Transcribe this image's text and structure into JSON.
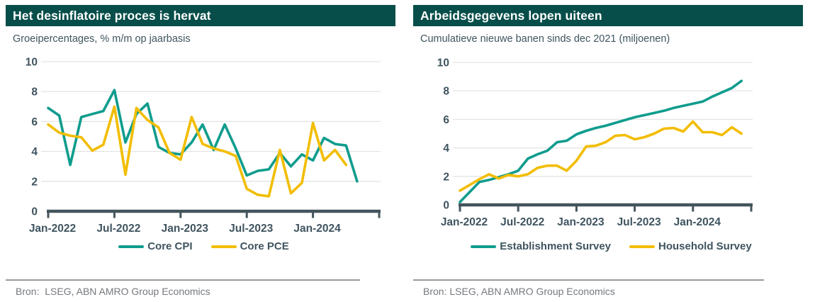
{
  "colors": {
    "header_bg": "#074E4A",
    "teal": "#0F9C8D",
    "yellow": "#F2BD00",
    "slate_text": "#3F545F",
    "axis": "#44545C",
    "grid": "#E3E4E5",
    "footer_rule": "#97999B",
    "footer_text": "#76797E"
  },
  "left_panel": {
    "title": "Het desinflatoire proces is hervat",
    "subtitle": "Groeipercentages, % m/m op jaarbasis",
    "source": "Bron:  LSEG, ABN AMRO Group Economics"
  },
  "right_panel": {
    "title": "Arbeidsgegevens lopen uiteen",
    "subtitle": "Cumulatieve nieuwe banen sinds dec 2021 (miljoenen)",
    "source": "Bron: LSEG, ABN AMRO Group Economics"
  },
  "chart_data": [
    {
      "type": "line",
      "title": "Het desinflatoire proces is hervat",
      "subtitle": "Groeipercentages, % m/m op jaarbasis",
      "ylim": [
        0,
        10
      ],
      "y_ticks": [
        0,
        2,
        4,
        6,
        8,
        10
      ],
      "grid": true,
      "legend_position": "bottom",
      "x_tick_labels": [
        "Jan-2022",
        "Jul-2022",
        "Jan-2023",
        "Jul-2023",
        "Jan-2024"
      ],
      "categories": [
        "Jan-2022",
        "Feb-2022",
        "Mar-2022",
        "Apr-2022",
        "May-2022",
        "Jun-2022",
        "Jul-2022",
        "Aug-2022",
        "Sep-2022",
        "Oct-2022",
        "Nov-2022",
        "Dec-2022",
        "Jan-2023",
        "Feb-2023",
        "Mar-2023",
        "Apr-2023",
        "May-2023",
        "Jun-2023",
        "Jul-2023",
        "Aug-2023",
        "Sep-2023",
        "Oct-2023",
        "Nov-2023",
        "Dec-2023",
        "Jan-2024",
        "Feb-2024",
        "Mar-2024",
        "Apr-2024",
        "May-2024"
      ],
      "series": [
        {
          "name": "Core CPI",
          "color_key": "teal",
          "values": [
            6.9,
            6.4,
            3.1,
            6.3,
            6.5,
            6.7,
            8.1,
            4.6,
            6.5,
            7.2,
            4.3,
            3.9,
            3.8,
            4.6,
            5.8,
            4.1,
            5.8,
            4.2,
            2.4,
            2.7,
            2.8,
            3.9,
            3.0,
            3.8,
            3.4,
            4.9,
            4.5,
            4.4,
            2.0
          ]
        },
        {
          "name": "Core PCE",
          "color_key": "yellow",
          "values": [
            5.8,
            5.25,
            5.05,
            4.95,
            4.05,
            4.45,
            7.0,
            2.45,
            6.9,
            6.1,
            5.6,
            3.9,
            3.45,
            6.3,
            4.5,
            4.2,
            4.0,
            3.7,
            1.5,
            1.1,
            1.0,
            4.1,
            1.2,
            1.9,
            5.9,
            3.4,
            4.1,
            3.1,
            null
          ]
        }
      ]
    },
    {
      "type": "line",
      "title": "Arbeidsgegevens lopen uiteen",
      "subtitle": "Cumulatieve nieuwe banen sinds dec 2021 (miljoenen)",
      "ylim": [
        0,
        10
      ],
      "y_ticks": [
        0,
        2,
        4,
        6,
        8,
        10
      ],
      "grid": true,
      "legend_position": "bottom",
      "x_tick_labels": [
        "Jan-2022",
        "Jul-2022",
        "Jan-2023",
        "Jul-2023",
        "Jan-2024"
      ],
      "categories": [
        "Jan-2022",
        "Feb-2022",
        "Mar-2022",
        "Apr-2022",
        "May-2022",
        "Jun-2022",
        "Jul-2022",
        "Aug-2022",
        "Sep-2022",
        "Oct-2022",
        "Nov-2022",
        "Dec-2022",
        "Jan-2023",
        "Feb-2023",
        "Mar-2023",
        "Apr-2023",
        "May-2023",
        "Jun-2023",
        "Jul-2023",
        "Aug-2023",
        "Sep-2023",
        "Oct-2023",
        "Nov-2023",
        "Dec-2023",
        "Jan-2024",
        "Feb-2024",
        "Mar-2024",
        "Apr-2024",
        "May-2024",
        "Jun-2024"
      ],
      "series": [
        {
          "name": "Establishment Survey",
          "color_key": "teal",
          "values": [
            0.2,
            0.9,
            1.6,
            1.75,
            1.95,
            2.15,
            2.4,
            3.25,
            3.55,
            3.8,
            4.4,
            4.5,
            4.95,
            5.2,
            5.4,
            5.55,
            5.75,
            5.95,
            6.15,
            6.3,
            6.45,
            6.6,
            6.8,
            6.95,
            7.1,
            7.25,
            7.6,
            7.9,
            8.2,
            8.7
          ]
        },
        {
          "name": "Household Survey",
          "color_key": "yellow",
          "values": [
            1.0,
            1.4,
            1.8,
            2.15,
            1.85,
            2.1,
            2.0,
            2.15,
            2.6,
            2.75,
            2.75,
            2.4,
            3.1,
            4.1,
            4.15,
            4.4,
            4.85,
            4.9,
            4.6,
            4.75,
            5.0,
            5.35,
            5.4,
            5.15,
            5.85,
            5.1,
            5.1,
            4.9,
            5.45,
            5.0
          ]
        }
      ]
    }
  ]
}
